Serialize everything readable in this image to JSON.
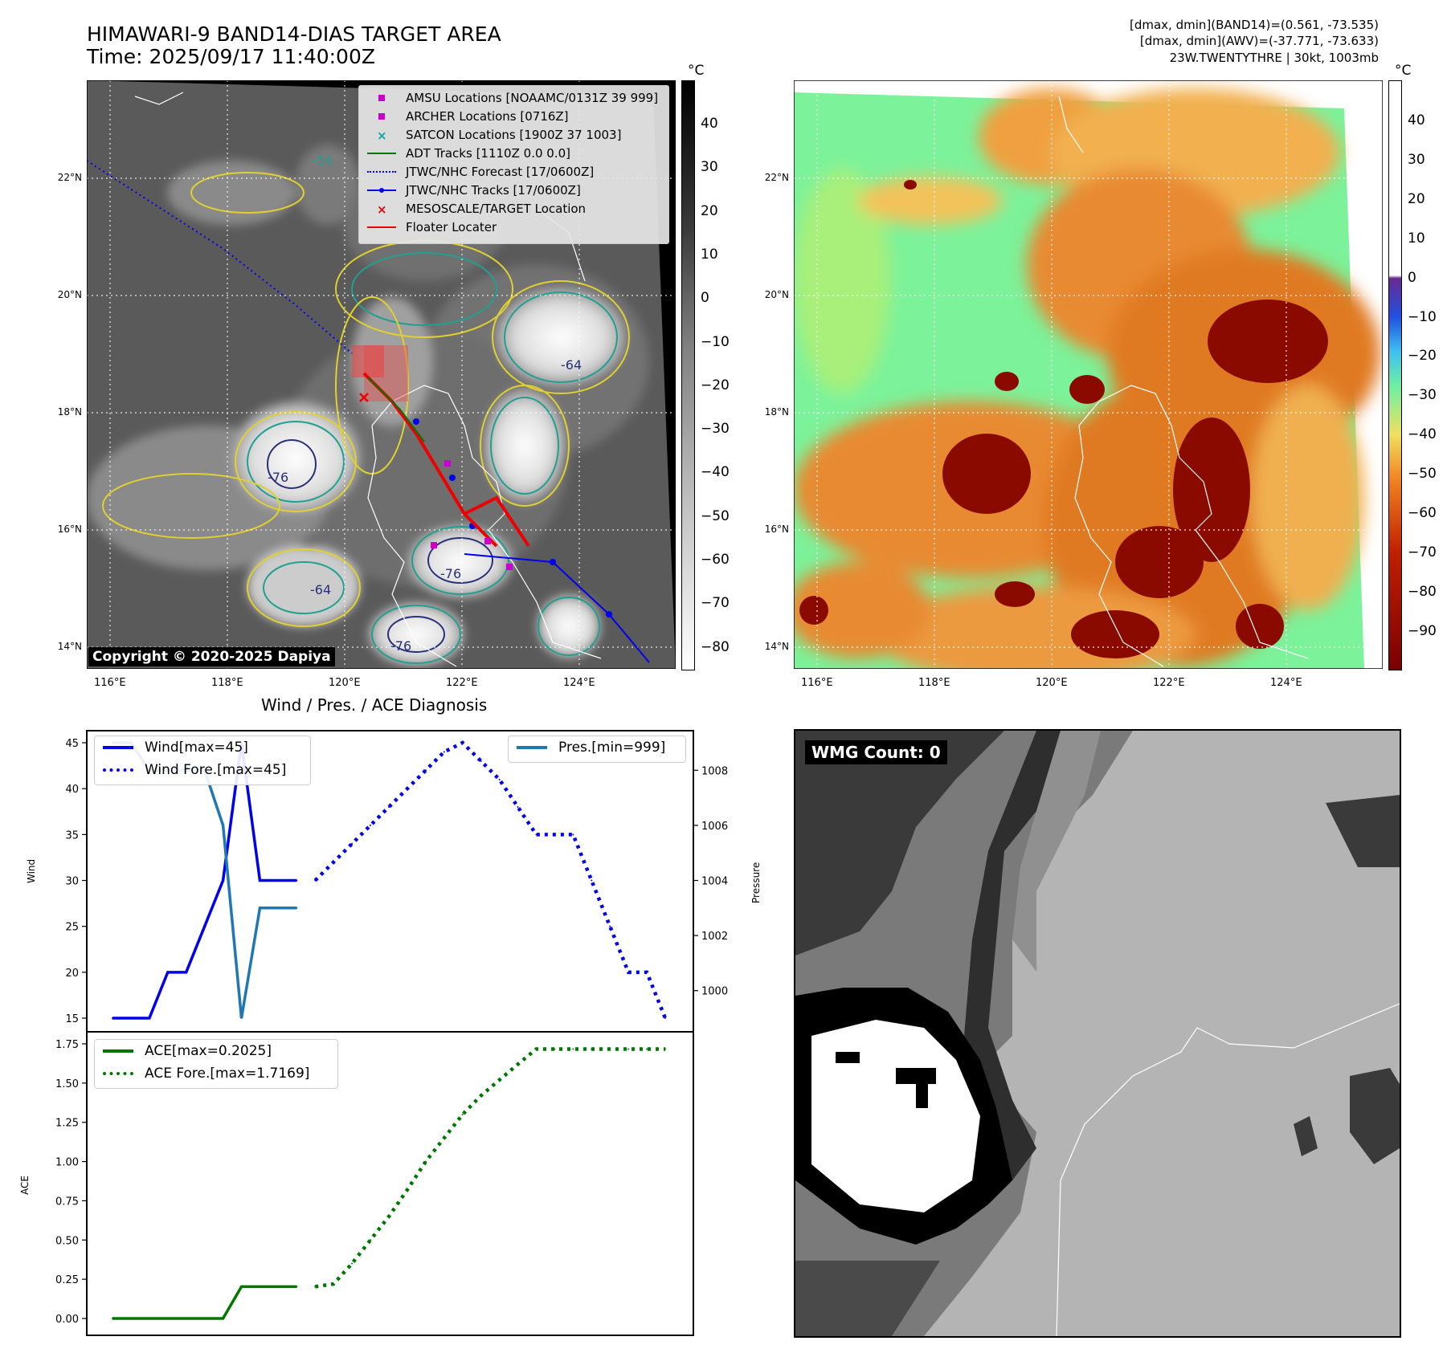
{
  "header": {
    "title": "HIMAWARI-9 BAND14-DIAS TARGET AREA",
    "time": "Time: 2025/09/17 11:40:00Z",
    "info_line1": "[dmax, dmin](BAND14)=(0.561, -73.535)",
    "info_line2": "[dmax, dmin](AWV)=(-37.771, -73.633)",
    "info_line3": "23W.TWENTYTHRE | 30kt, 1003mb"
  },
  "map_common": {
    "lat_labels": [
      "22°N",
      "20°N",
      "18°N",
      "16°N",
      "14°N"
    ],
    "lon_labels": [
      "116°E",
      "118°E",
      "120°E",
      "122°E",
      "124°E"
    ]
  },
  "ir_map": {
    "copyright": "Copyright © 2020-2025 Dapiya",
    "contour_labels": [
      "-64",
      "-76",
      "-54"
    ],
    "legend": [
      {
        "label": "AMSU Locations [NOAAMC/0131Z 39 999]",
        "kind": "square",
        "color": "#cc00cc"
      },
      {
        "label": "ARCHER Locations [0716Z]",
        "kind": "square",
        "color": "#cc00cc"
      },
      {
        "label": "SATCON Locations [1900Z 37 1003]",
        "kind": "x",
        "color": "#00aaaa"
      },
      {
        "label": "ADT Tracks [1110Z 0.0 0.0]",
        "kind": "line",
        "color": "#007700"
      },
      {
        "label": "JTWC/NHC Forecast [17/0600Z]",
        "kind": "dotted",
        "color": "#0000ee"
      },
      {
        "label": "JTWC/NHC Tracks [17/0600Z]",
        "kind": "line-dot",
        "color": "#0000ee"
      },
      {
        "label": "MESOSCALE/TARGET Location",
        "kind": "x",
        "color": "#ee0000"
      },
      {
        "label": "Floater Locater",
        "kind": "line",
        "color": "#ee0000"
      }
    ],
    "colorbar": {
      "unit": "°C",
      "ticks": [
        "40",
        "30",
        "20",
        "10",
        "0",
        "−10",
        "−20",
        "−30",
        "−40",
        "−50",
        "−60",
        "−70",
        "−80"
      ]
    }
  },
  "awv_map": {
    "colorbar": {
      "unit": "°C",
      "ticks": [
        "40",
        "30",
        "20",
        "10",
        "0",
        "−10",
        "−20",
        "−30",
        "−40",
        "−50",
        "−60",
        "−70",
        "−80",
        "−90"
      ]
    }
  },
  "wmg": {
    "label": "WMG Count: 0"
  },
  "chart_data": [
    {
      "type": "line",
      "title": "Wind / Pres. / ACE Diagnosis",
      "ylabel": "Wind",
      "ylim": [
        15,
        45
      ],
      "yticks": [
        "45",
        "40",
        "35",
        "30",
        "25",
        "20",
        "15"
      ],
      "series": [
        {
          "name": "Wind[max=45]",
          "style": "solid",
          "color": "#0000ee",
          "x": [
            0,
            1,
            2,
            3,
            4,
            5,
            6,
            7,
            8,
            9,
            10
          ],
          "values": [
            15,
            15,
            15,
            20,
            20,
            25,
            30,
            45,
            30,
            30,
            30
          ]
        },
        {
          "name": "Wind Fore.[max=45]",
          "style": "dotted",
          "color": "#0000ee",
          "x": [
            11,
            12,
            13,
            14,
            15,
            16,
            17,
            18,
            19,
            20,
            21,
            22,
            23,
            24,
            25,
            26,
            27,
            28,
            29,
            30
          ],
          "values": [
            30,
            32,
            34,
            36,
            38,
            40,
            42,
            44,
            45,
            43,
            41,
            38,
            35,
            35,
            35,
            30,
            25,
            20,
            20,
            15
          ]
        }
      ],
      "secondary": {
        "ylabel": "Pressure",
        "ylim": [
          999,
          1009
        ],
        "yticks": [
          "1008",
          "1006",
          "1004",
          "1002",
          "1000"
        ],
        "series": [
          {
            "name": "Pres.[min=999]",
            "style": "solid",
            "color": "#1f77b4",
            "x": [
              0,
              1,
              2,
              3,
              4,
              5,
              6,
              7,
              8,
              9,
              10
            ],
            "values": [
              1009,
              1009,
              1008,
              1008,
              1008,
              1008,
              1006,
              999,
              1003,
              1003,
              1003
            ]
          }
        ]
      }
    },
    {
      "type": "line",
      "ylabel": "ACE",
      "ylim": [
        0,
        1.75
      ],
      "yticks": [
        "1.75",
        "1.50",
        "1.25",
        "1.00",
        "0.75",
        "0.50",
        "0.25",
        "0.00"
      ],
      "series": [
        {
          "name": "ACE[max=0.2025]",
          "style": "solid",
          "color": "#007700",
          "x": [
            0,
            1,
            2,
            3,
            4,
            5,
            6,
            7,
            8,
            9,
            10
          ],
          "values": [
            0,
            0,
            0,
            0,
            0,
            0,
            0,
            0.2025,
            0.2025,
            0.2025,
            0.2025
          ]
        },
        {
          "name": "ACE Fore.[max=1.7169]",
          "style": "dotted",
          "color": "#007700",
          "x": [
            11,
            12,
            13,
            14,
            15,
            16,
            17,
            18,
            19,
            20,
            21,
            22,
            23,
            24,
            25,
            26,
            27,
            28,
            29,
            30
          ],
          "values": [
            0.2025,
            0.22,
            0.35,
            0.5,
            0.65,
            0.82,
            1.0,
            1.15,
            1.3,
            1.42,
            1.52,
            1.62,
            1.7169,
            1.7169,
            1.7169,
            1.7169,
            1.7169,
            1.7169,
            1.7169,
            1.7169
          ]
        }
      ]
    }
  ]
}
